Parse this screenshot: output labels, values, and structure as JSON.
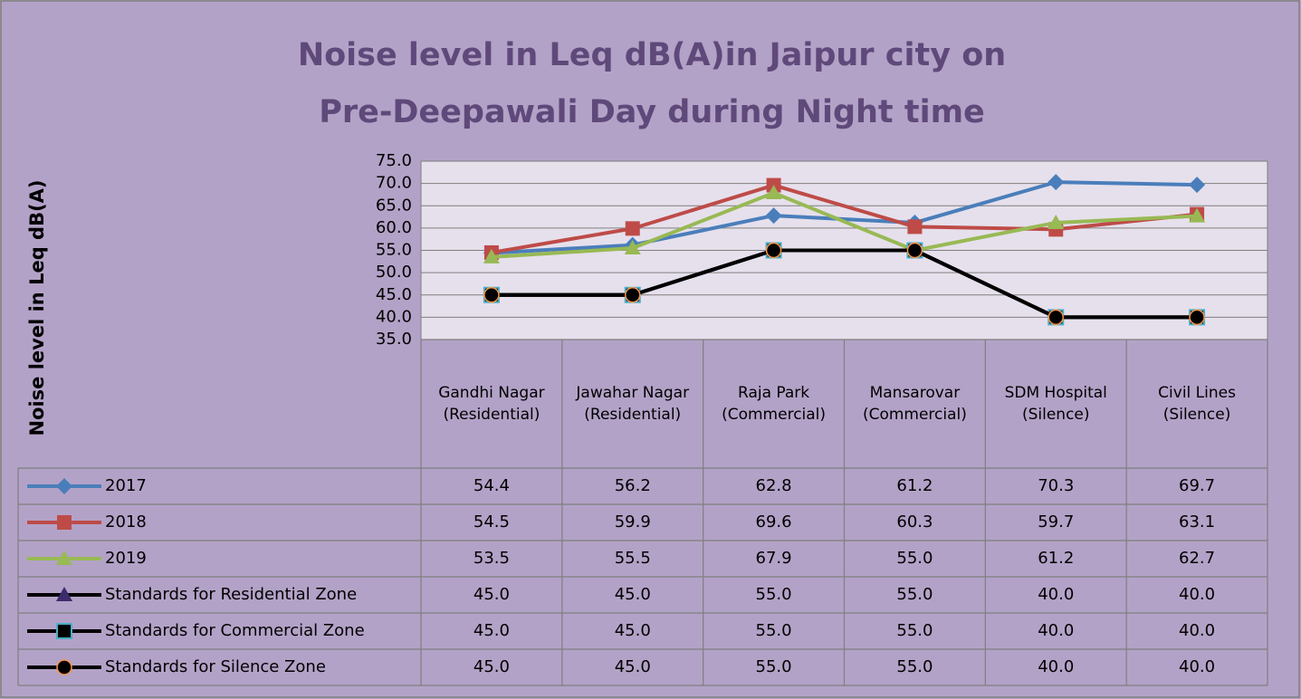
{
  "chart_data": {
    "type": "line",
    "title": "Noise level in Leq dB(A)in Jaipur city on Pre-Deepawali Day during Night time",
    "y_label": "Noise level in Leq dB(A)",
    "categories": [
      "Gandhi Nagar (Residential)",
      "Jawahar Nagar (Residential)",
      "Raja Park (Commercial)",
      "Mansarovar (Commercial)",
      "SDM Hospital (Silence)",
      "Civil Lines (Silence)"
    ],
    "ylim": [
      35,
      75
    ],
    "yticks": [
      {
        "value": 35,
        "label": "35.0"
      },
      {
        "value": 40,
        "label": "40.0"
      },
      {
        "value": 45,
        "label": "45.0"
      },
      {
        "value": 50,
        "label": "50.0"
      },
      {
        "value": 55,
        "label": "55.0"
      },
      {
        "value": 60,
        "label": "60.0"
      },
      {
        "value": 65,
        "label": "65.0"
      },
      {
        "value": 70,
        "label": "70.0"
      },
      {
        "value": 75,
        "label": "75.0"
      }
    ],
    "grid": true,
    "series": [
      {
        "name": "2017",
        "color": "#4a7ebb",
        "marker": "diamond",
        "marker_color": "#4a7ebb",
        "values": [
          54.4,
          56.2,
          62.8,
          61.2,
          70.3,
          69.7
        ],
        "value_labels": [
          "54.4",
          "56.2",
          "62.8",
          "61.2",
          "70.3",
          "69.7"
        ]
      },
      {
        "name": "2018",
        "color": "#be4b48",
        "marker": "square",
        "marker_color": "#be4b48",
        "values": [
          54.5,
          59.9,
          69.6,
          60.3,
          59.7,
          63.1
        ],
        "value_labels": [
          "54.5",
          "59.9",
          "69.6",
          "60.3",
          "59.7",
          "63.1"
        ]
      },
      {
        "name": "2019",
        "color": "#98b954",
        "marker": "triangle",
        "marker_color": "#98b954",
        "values": [
          53.5,
          55.5,
          67.9,
          55.0,
          61.2,
          62.7
        ],
        "value_labels": [
          "53.5",
          "55.5",
          "67.9",
          "55.0",
          "61.2",
          "62.7"
        ]
      },
      {
        "name": "Standards for Residential Zone",
        "color": "#000000",
        "marker": "triangle",
        "marker_color": "#3b2d6b",
        "values": [
          45,
          45,
          55,
          55,
          40,
          40
        ],
        "value_labels": [
          "45.0",
          "45.0",
          "55.0",
          "55.0",
          "40.0",
          "40.0"
        ]
      },
      {
        "name": "Standards for Commercial Zone",
        "color": "#000000",
        "marker": "square",
        "marker_color": "#4bacc6",
        "values": [
          45,
          45,
          55,
          55,
          40,
          40
        ],
        "value_labels": [
          "45.0",
          "45.0",
          "55.0",
          "55.0",
          "40.0",
          "40.0"
        ]
      },
      {
        "name": "Standards for Silence Zone",
        "color": "#000000",
        "marker": "circle",
        "marker_color": "#f79646",
        "values": [
          45,
          45,
          55,
          55,
          40,
          40
        ],
        "value_labels": [
          "45.0",
          "45.0",
          "55.0",
          "55.0",
          "40.0",
          "40.0"
        ]
      }
    ]
  }
}
